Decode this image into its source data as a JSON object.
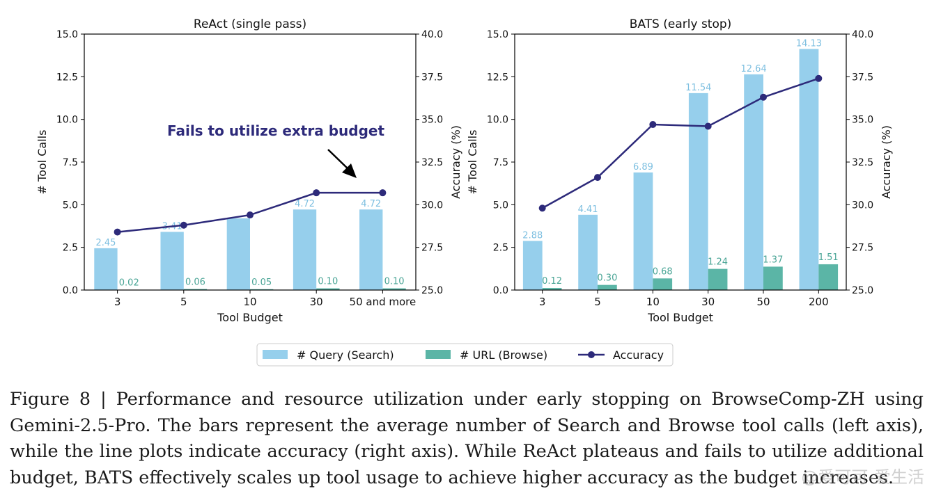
{
  "colors": {
    "search_bar": "#96cfec",
    "browse_bar": "#5bb5a6",
    "accuracy_line": "#2d2a7a",
    "search_label": "#7dbfe0",
    "browse_label": "#4aa596",
    "annotation": "#2d2a7a"
  },
  "legend": {
    "search": "# Query (Search)",
    "browse": "# URL (Browse)",
    "accuracy": "Accuracy"
  },
  "chart_data": [
    {
      "type": "bar",
      "title": "ReAct (single pass)",
      "xlabel": "Tool Budget",
      "ylabel": "# Tool Calls",
      "y2label": "Accuracy (%)",
      "ylim": [
        0,
        15
      ],
      "y2lim": [
        25,
        40
      ],
      "yticks": [
        "0.0",
        "2.5",
        "5.0",
        "7.5",
        "10.0",
        "12.5",
        "15.0"
      ],
      "y2ticks": [
        "25.0",
        "27.5",
        "30.0",
        "32.5",
        "35.0",
        "37.5",
        "40.0"
      ],
      "categories": [
        "3",
        "5",
        "10",
        "30",
        "50 and more"
      ],
      "series": [
        {
          "name": "# Query (Search)",
          "values": [
            2.45,
            3.41,
            4.2,
            4.72,
            4.72
          ],
          "labels": [
            "2.45",
            "3.41",
            "",
            "4.72",
            "4.72"
          ]
        },
        {
          "name": "# URL (Browse)",
          "values": [
            0.02,
            0.06,
            0.05,
            0.1,
            0.1
          ],
          "labels": [
            "0.02",
            "0.06",
            "0.05",
            "0.10",
            "0.10"
          ]
        },
        {
          "name": "Accuracy",
          "axis": "right",
          "values": [
            28.4,
            28.8,
            29.4,
            30.7,
            30.7
          ]
        }
      ],
      "annotation": "Fails to utilize extra budget"
    },
    {
      "type": "bar",
      "title": "BATS (early stop)",
      "xlabel": "Tool Budget",
      "ylabel": "# Tool Calls",
      "y2label": "Accuracy (%)",
      "ylim": [
        0,
        15
      ],
      "y2lim": [
        25,
        40
      ],
      "yticks": [
        "0.0",
        "2.5",
        "5.0",
        "7.5",
        "10.0",
        "12.5",
        "15.0"
      ],
      "y2ticks": [
        "25.0",
        "27.5",
        "30.0",
        "32.5",
        "35.0",
        "37.5",
        "40.0"
      ],
      "categories": [
        "3",
        "5",
        "10",
        "30",
        "50",
        "200"
      ],
      "series": [
        {
          "name": "# Query (Search)",
          "values": [
            2.88,
            4.41,
            6.89,
            11.54,
            12.64,
            14.13
          ],
          "labels": [
            "2.88",
            "4.41",
            "6.89",
            "11.54",
            "12.64",
            "14.13"
          ]
        },
        {
          "name": "# URL (Browse)",
          "values": [
            0.12,
            0.3,
            0.68,
            1.24,
            1.37,
            1.51
          ],
          "labels": [
            "0.12",
            "0.30",
            "0.68",
            "1.24",
            "1.37",
            "1.51"
          ]
        },
        {
          "name": "Accuracy",
          "axis": "right",
          "values": [
            29.8,
            31.6,
            34.7,
            34.6,
            36.3,
            37.4
          ]
        }
      ]
    }
  ],
  "caption": "Figure 8 | Performance and resource utilization under early stopping on BrowseComp-ZH using Gemini-2.5-Pro. The bars represent the average number of Search and Browse tool calls (left axis), while the line plots indicate accuracy (right axis). While ReAct plateaus and fails to utilize additional budget, BATS effectively scales up tool usage to achieve higher accuracy as the budget increases.",
  "watermark": "@爱可可-爱生活"
}
